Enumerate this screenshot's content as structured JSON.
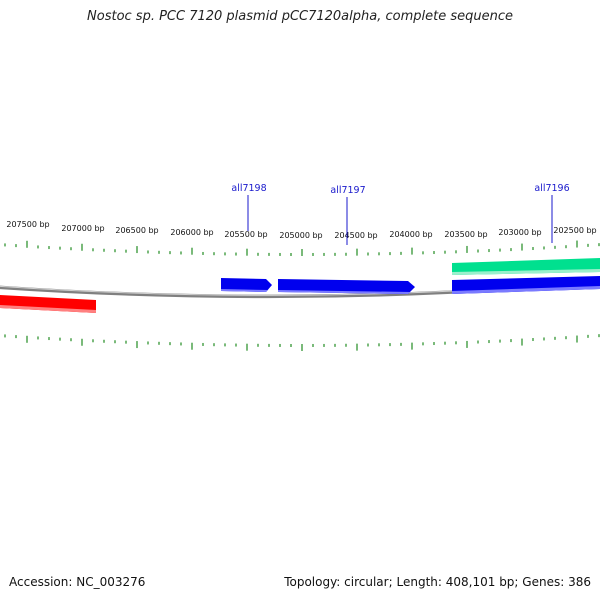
{
  "title": "Nostoc sp. PCC 7120 plasmid pCC7120alpha, complete sequence",
  "footer": {
    "accession_label": "Accession:",
    "accession": "NC_003276",
    "topology_label": "Topology:",
    "topology": "circular",
    "length_label": "Length:",
    "length": "408,101 bp",
    "genes_label": "Genes:",
    "genes": "386"
  },
  "scale": {
    "labels": [
      "207500 bp",
      "207000 bp",
      "206500 bp",
      "206000 bp",
      "205500 bp",
      "205000 bp",
      "204500 bp",
      "204000 bp",
      "203500 bp",
      "203000 bp",
      "202500 bp"
    ]
  },
  "gene_labels": [
    "all7198",
    "all7197",
    "all7196"
  ],
  "colors": {
    "backbone": "#808080",
    "tick": "#228b22",
    "gene_label": "#1a1acc",
    "forward_gene": "#00e08f",
    "reverse_gene": "#0000ee",
    "other_gene": "#ff0000"
  }
}
